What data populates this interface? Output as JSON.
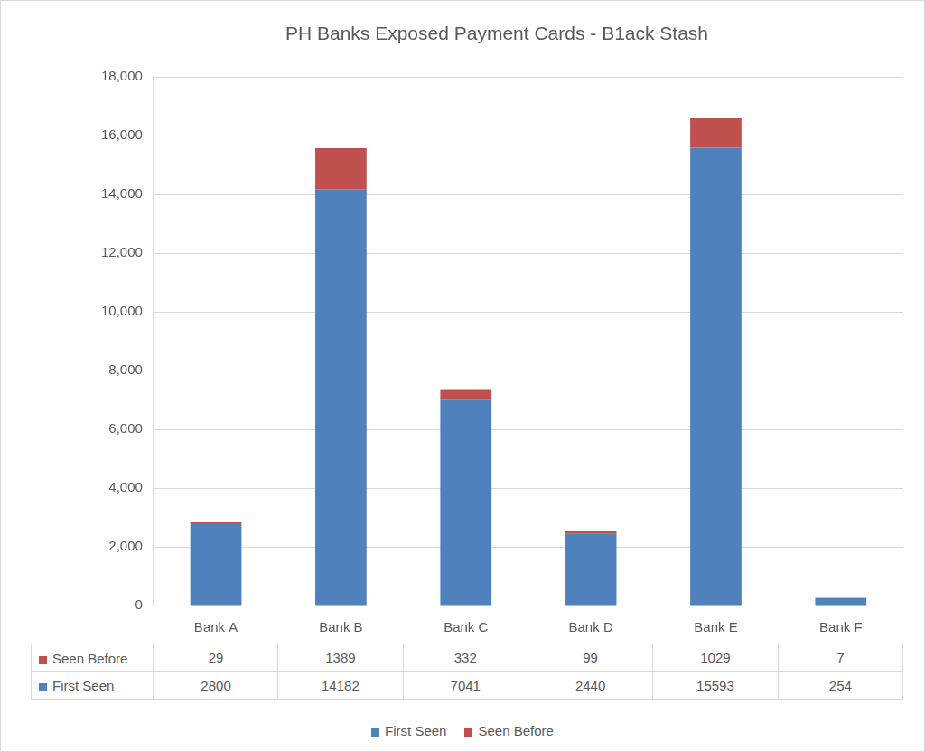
{
  "chart_data": {
    "type": "bar",
    "title": "PH Banks Exposed Payment Cards - B1ack Stash",
    "categories": [
      "Bank A",
      "Bank B",
      "Bank C",
      "Bank D",
      "Bank E",
      "Bank F"
    ],
    "series": [
      {
        "name": "First Seen",
        "color": "#4f81bd",
        "values": [
          2800,
          14182,
          7041,
          2440,
          15593,
          254
        ]
      },
      {
        "name": "Seen Before",
        "color": "#c0504d",
        "values": [
          29,
          1389,
          332,
          99,
          1029,
          7
        ]
      }
    ],
    "ylim": [
      0,
      18000
    ],
    "yticks": [
      0,
      2000,
      4000,
      6000,
      8000,
      10000,
      12000,
      14000,
      16000,
      18000
    ],
    "grid": true,
    "stacked": true,
    "legend": "bottom"
  }
}
